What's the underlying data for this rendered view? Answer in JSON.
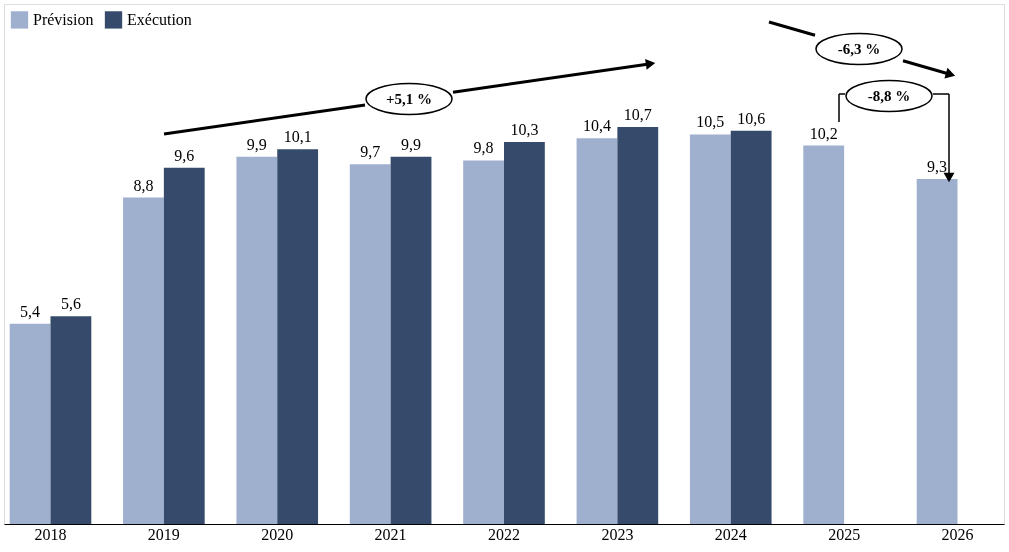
{
  "chart_data": {
    "type": "bar",
    "categories": [
      "2018",
      "2019",
      "2020",
      "2021",
      "2022",
      "2023",
      "2024",
      "2025",
      "2026"
    ],
    "series": [
      {
        "name": "Prévision",
        "color": "#9fb0cf",
        "values": [
          5.4,
          8.8,
          9.9,
          9.7,
          9.8,
          10.4,
          10.5,
          10.2,
          9.3
        ],
        "value_labels": [
          "5,4",
          "8,8",
          "9,9",
          "9,7",
          "9,8",
          "10,4",
          "10,5",
          "10,2",
          "9,3"
        ]
      },
      {
        "name": "Exécution",
        "color": "#364b6b",
        "values": [
          5.6,
          9.6,
          10.1,
          9.9,
          10.3,
          10.7,
          10.6,
          null,
          null
        ],
        "value_labels": [
          "5,6",
          "9,6",
          "10,1",
          "9,9",
          "10,3",
          "10,7",
          "10,6",
          null,
          null
        ]
      }
    ],
    "legend": "top left",
    "grid": false,
    "annotations": [
      "+5,1 %",
      "-6,3 %",
      "-8,8 %"
    ]
  }
}
